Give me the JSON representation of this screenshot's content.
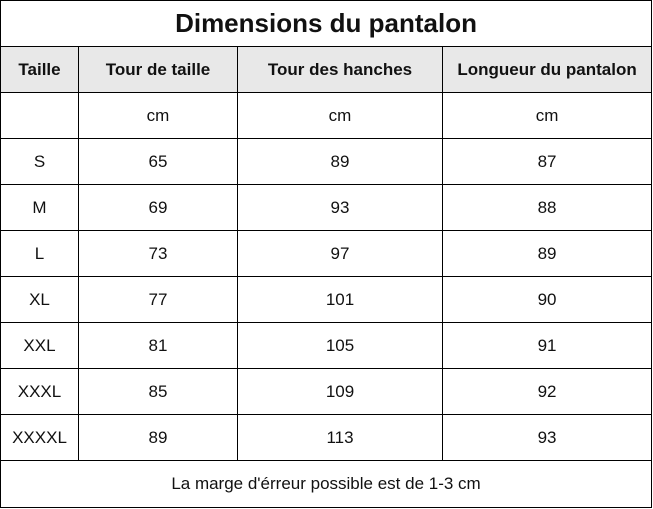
{
  "table": {
    "title": "Dimensions du pantalon",
    "headers": [
      "Taille",
      "Tour de taille",
      "Tour des hanches",
      "Longueur du pantalon"
    ],
    "unit_row": [
      "",
      "cm",
      "cm",
      "cm"
    ],
    "rows": [
      [
        "S",
        "65",
        "89",
        "87"
      ],
      [
        "M",
        "69",
        "93",
        "88"
      ],
      [
        "L",
        "73",
        "97",
        "89"
      ],
      [
        "XL",
        "77",
        "101",
        "90"
      ],
      [
        "XXL",
        "81",
        "105",
        "91"
      ],
      [
        "XXXL",
        "85",
        "109",
        "92"
      ],
      [
        "XXXXL",
        "89",
        "113",
        "93"
      ]
    ],
    "note": "La marge d'érreur possible est de 1-3 cm"
  },
  "colors": {
    "header_background": "#e8e8e8",
    "border": "#000000",
    "text": "#111111"
  }
}
